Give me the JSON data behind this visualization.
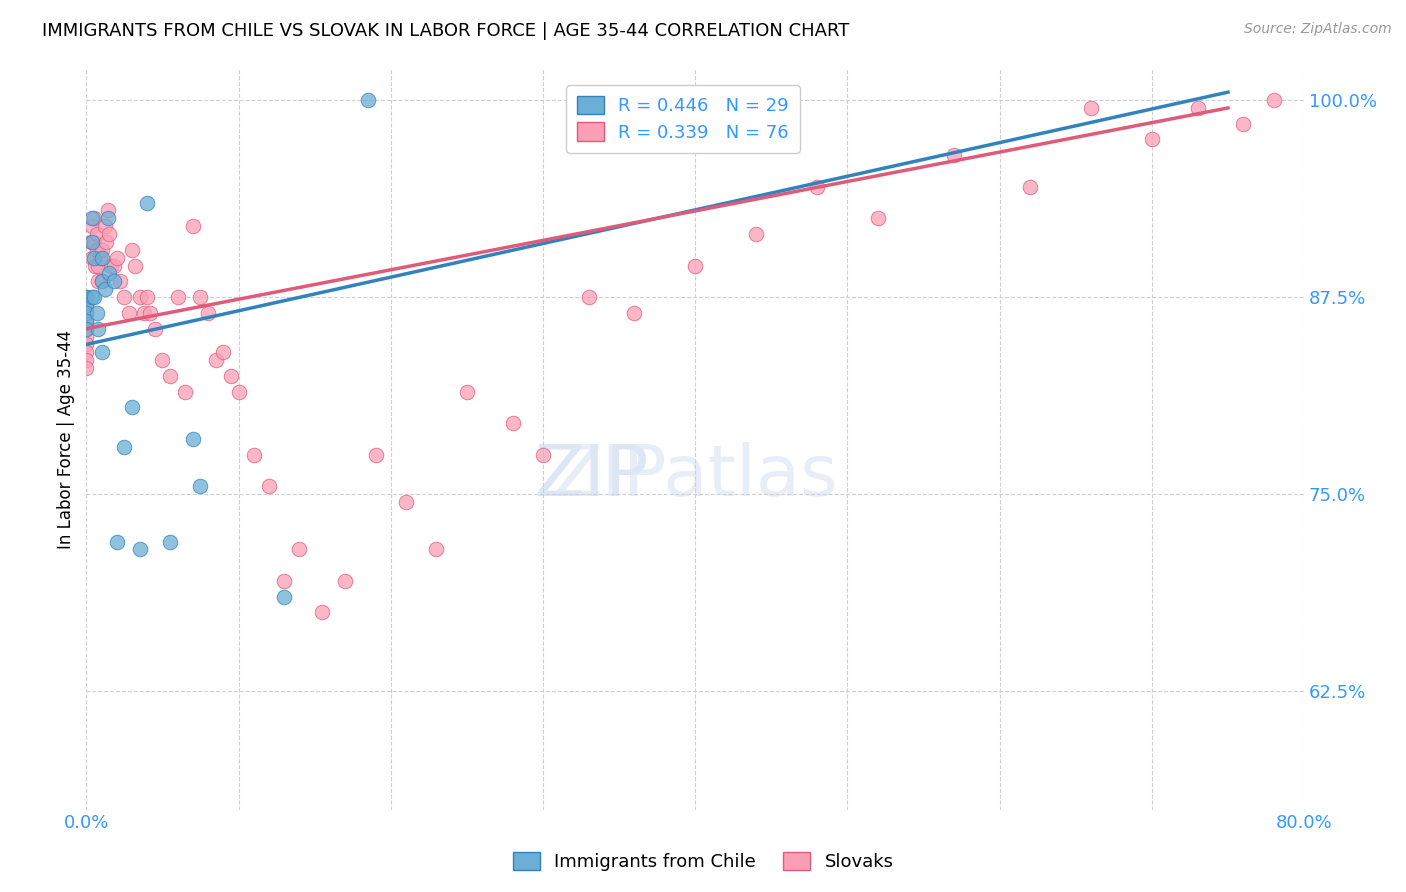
{
  "title": "IMMIGRANTS FROM CHILE VS SLOVAK IN LABOR FORCE | AGE 35-44 CORRELATION CHART",
  "source": "Source: ZipAtlas.com",
  "ylabel": "In Labor Force | Age 35-44",
  "x_min": 0.0,
  "x_max": 0.8,
  "y_min": 0.55,
  "y_max": 1.02,
  "x_ticks": [
    0.0,
    0.1,
    0.2,
    0.3,
    0.4,
    0.5,
    0.6,
    0.7,
    0.8
  ],
  "y_ticks": [
    0.625,
    0.75,
    0.875,
    1.0
  ],
  "y_tick_labels": [
    "62.5%",
    "75.0%",
    "87.5%",
    "100.0%"
  ],
  "R_chile": 0.446,
  "N_chile": 29,
  "R_slovak": 0.339,
  "N_slovak": 76,
  "color_chile": "#6baed6",
  "color_slovak": "#fa9fb5",
  "color_chile_line": "#3182bd",
  "color_slovak_line": "#e05a7a",
  "legend_label_chile": "Immigrants from Chile",
  "legend_label_slovak": "Slovaks",
  "chile_line_x0": 0.0,
  "chile_line_y0": 0.845,
  "chile_line_x1": 0.75,
  "chile_line_y1": 1.005,
  "slovak_line_x0": 0.0,
  "slovak_line_y0": 0.855,
  "slovak_line_x1": 0.75,
  "slovak_line_y1": 0.995,
  "chile_x": [
    0.0,
    0.0,
    0.0,
    0.0,
    0.0,
    0.004,
    0.004,
    0.004,
    0.005,
    0.005,
    0.007,
    0.008,
    0.01,
    0.01,
    0.01,
    0.012,
    0.014,
    0.015,
    0.018,
    0.02,
    0.025,
    0.03,
    0.035,
    0.04,
    0.055,
    0.07,
    0.075,
    0.13,
    0.185
  ],
  "chile_y": [
    0.875,
    0.87,
    0.865,
    0.86,
    0.855,
    0.925,
    0.91,
    0.875,
    0.9,
    0.875,
    0.865,
    0.855,
    0.9,
    0.885,
    0.84,
    0.88,
    0.925,
    0.89,
    0.885,
    0.72,
    0.78,
    0.805,
    0.715,
    0.935,
    0.72,
    0.785,
    0.755,
    0.685,
    1.0
  ],
  "slovak_x": [
    0.0,
    0.0,
    0.0,
    0.0,
    0.0,
    0.0,
    0.0,
    0.0,
    0.0,
    0.0,
    0.003,
    0.004,
    0.004,
    0.005,
    0.005,
    0.006,
    0.007,
    0.007,
    0.008,
    0.008,
    0.009,
    0.01,
    0.01,
    0.012,
    0.013,
    0.014,
    0.015,
    0.016,
    0.018,
    0.02,
    0.022,
    0.025,
    0.028,
    0.03,
    0.032,
    0.035,
    0.038,
    0.04,
    0.042,
    0.045,
    0.05,
    0.055,
    0.06,
    0.065,
    0.07,
    0.075,
    0.08,
    0.085,
    0.09,
    0.095,
    0.1,
    0.11,
    0.12,
    0.13,
    0.14,
    0.155,
    0.17,
    0.19,
    0.21,
    0.23,
    0.25,
    0.28,
    0.3,
    0.33,
    0.36,
    0.4,
    0.44,
    0.48,
    0.52,
    0.57,
    0.62,
    0.66,
    0.7,
    0.73,
    0.76,
    0.78
  ],
  "slovak_y": [
    0.875,
    0.87,
    0.865,
    0.86,
    0.855,
    0.85,
    0.845,
    0.84,
    0.835,
    0.83,
    0.91,
    0.92,
    0.9,
    0.925,
    0.91,
    0.895,
    0.915,
    0.905,
    0.895,
    0.885,
    0.9,
    0.905,
    0.885,
    0.92,
    0.91,
    0.93,
    0.915,
    0.895,
    0.895,
    0.9,
    0.885,
    0.875,
    0.865,
    0.905,
    0.895,
    0.875,
    0.865,
    0.875,
    0.865,
    0.855,
    0.835,
    0.825,
    0.875,
    0.815,
    0.92,
    0.875,
    0.865,
    0.835,
    0.84,
    0.825,
    0.815,
    0.775,
    0.755,
    0.695,
    0.715,
    0.675,
    0.695,
    0.775,
    0.745,
    0.715,
    0.815,
    0.795,
    0.775,
    0.875,
    0.865,
    0.895,
    0.915,
    0.945,
    0.925,
    0.965,
    0.945,
    0.995,
    0.975,
    0.995,
    0.985,
    1.0
  ]
}
